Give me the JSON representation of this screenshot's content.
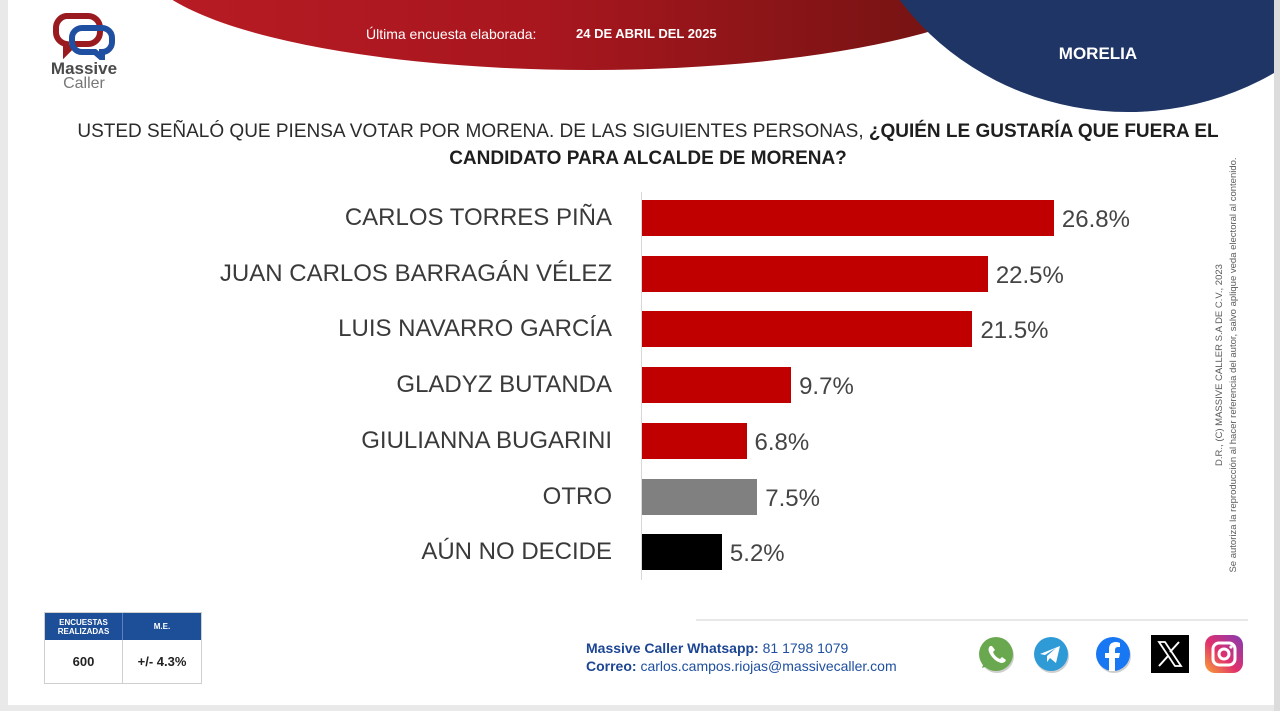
{
  "header": {
    "survey_label": "Última encuesta elaborada:",
    "survey_date": "24 DE ABRIL DEL 2025",
    "city": "MORELIA"
  },
  "logo": {
    "line1": "Massive",
    "line2": "Caller"
  },
  "question": {
    "normal": "USTED SEÑALÓ QUE PIENSA VOTAR POR MORENA.  DE LAS SIGUIENTES PERSONAS, ",
    "bold": "¿QUIÉN LE GUSTARÍA QUE FUERA EL CANDIDATO PARA ALCALDE DE MORENA?"
  },
  "chart_data": {
    "type": "bar",
    "orientation": "horizontal",
    "title": "USTED SEÑALÓ QUE PIENSA VOTAR POR MORENA.  DE LAS SIGUIENTES PERSONAS, ¿QUIÉN LE GUSTARÍA QUE FUERA EL CANDIDATO PARA ALCALDE DE MORENA?",
    "xlabel": "",
    "ylabel": "",
    "xlim": [
      0,
      30
    ],
    "grid": false,
    "categories": [
      "CARLOS TORRES PIÑA",
      "JUAN CARLOS BARRAGÁN VÉLEZ",
      "LUIS NAVARRO GARCÍA",
      "GLADYZ BUTANDA",
      "GIULIANNA BUGARINI",
      "OTRO",
      "AÚN NO DECIDE"
    ],
    "values": [
      26.8,
      22.5,
      21.5,
      9.7,
      6.8,
      7.5,
      5.2
    ],
    "labels": [
      "26.8%",
      "22.5%",
      "21.5%",
      "9.7%",
      "6.8%",
      "7.5%",
      "5.2%"
    ],
    "colors": [
      "#c00000",
      "#c00000",
      "#c00000",
      "#c00000",
      "#c00000",
      "#808080",
      "#000000"
    ]
  },
  "copyright": {
    "line1": "D.R., (C) MASSIVE CALLER S.A DE C.V., 2023",
    "line2": "Se autoriza la reproducción al hacer referencia del autor, salvo aplique veda electoral al contenido."
  },
  "stats": {
    "col1_header": "ENCUESTAS REALIZADAS",
    "col2_header": "M.E.",
    "col1_value": "600",
    "col2_value": "+/- 4.3%"
  },
  "contact": {
    "whatsapp_label": "Massive Caller Whatsapp:",
    "whatsapp_value": " 81 1798 1079",
    "email_label": "Correo:",
    "email_value": " carlos.campos.riojas@massivecaller.com"
  },
  "social": [
    {
      "icon": "whatsapp-icon",
      "color": "#6aa84f"
    },
    {
      "icon": "telegram-icon",
      "color": "#2f9bd6"
    },
    {
      "icon": "facebook-icon",
      "color": "#1877f2"
    },
    {
      "icon": "x-icon",
      "color": "#000000"
    },
    {
      "icon": "instagram-icon",
      "color": "#d6249f"
    }
  ],
  "colors": {
    "brand_red": "#b81c24",
    "brand_blue": "#1f3566",
    "table_blue": "#1d4f98"
  }
}
